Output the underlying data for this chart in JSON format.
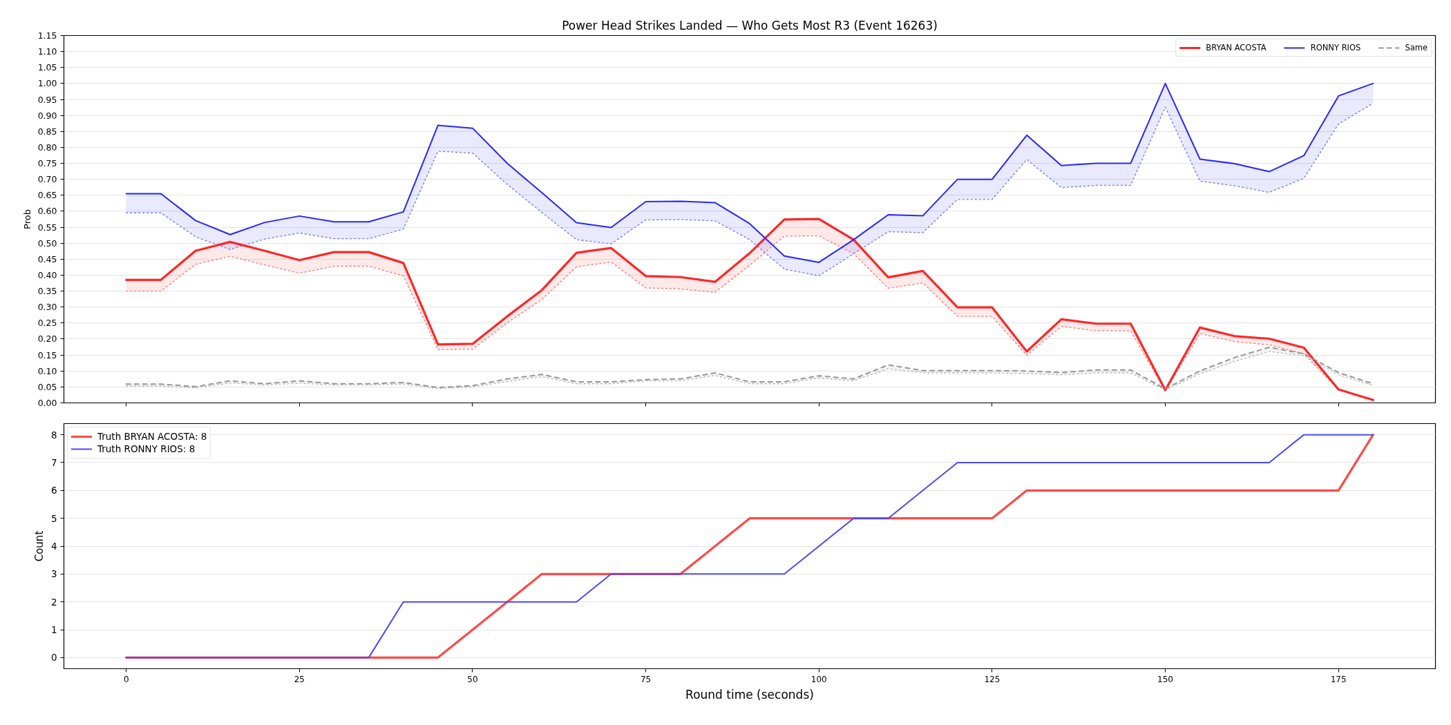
{
  "chart_data": [
    {
      "type": "line",
      "title": "Power Head Strikes Landed — Who Gets Most R3 (Event 16263)",
      "ylabel": "Prob",
      "x": [
        0,
        5,
        10,
        15,
        20,
        25,
        30,
        35,
        40,
        45,
        50,
        55,
        60,
        65,
        70,
        75,
        80,
        85,
        90,
        95,
        100,
        105,
        110,
        115,
        120,
        125,
        130,
        135,
        140,
        145,
        150,
        155,
        160,
        165,
        170,
        175,
        180
      ],
      "xlim": [
        -9,
        189
      ],
      "xticks": [
        0,
        25,
        50,
        75,
        100,
        125,
        150,
        175
      ],
      "ylim": [
        0,
        1.15
      ],
      "yticks": [
        {
          "value": 0,
          "label": "0.00"
        },
        {
          "value": 0.05,
          "label": "0.05"
        },
        {
          "value": 0.1,
          "label": "0.10"
        },
        {
          "value": 0.15,
          "label": "0.15"
        },
        {
          "value": 0.2,
          "label": "0.20"
        },
        {
          "value": 0.25,
          "label": "0.25"
        },
        {
          "value": 0.3,
          "label": "0.30"
        },
        {
          "value": 0.35,
          "label": "0.35"
        },
        {
          "value": 0.4,
          "label": "0.40"
        },
        {
          "value": 0.45,
          "label": "0.45"
        },
        {
          "value": 0.5,
          "label": "0.50"
        },
        {
          "value": 0.55,
          "label": "0.55"
        },
        {
          "value": 0.6,
          "label": "0.60"
        },
        {
          "value": 0.65,
          "label": "0.65"
        },
        {
          "value": 0.7,
          "label": "0.70"
        },
        {
          "value": 0.75,
          "label": "0.75"
        },
        {
          "value": 0.8,
          "label": "0.80"
        },
        {
          "value": 0.85,
          "label": "0.85"
        },
        {
          "value": 0.9,
          "label": "0.90"
        },
        {
          "value": 0.95,
          "label": "0.95"
        },
        {
          "value": 1,
          "label": "1.00"
        },
        {
          "value": 1.05,
          "label": "1.05"
        },
        {
          "value": 1.1,
          "label": "1.10"
        },
        {
          "value": 1.15,
          "label": "1.15"
        }
      ],
      "tick_labels": "y",
      "grid": "y",
      "legend": "top right",
      "series": [
        {
          "color": "#ff7070",
          "line_style": "dotted",
          "values": [
            0.35,
            0.35,
            0.434,
            0.459,
            0.432,
            0.406,
            0.428,
            0.428,
            0.398,
            0.167,
            0.168,
            0.251,
            0.324,
            0.426,
            0.441,
            0.36,
            0.357,
            0.346,
            0.431,
            0.522,
            0.523,
            0.467,
            0.359,
            0.376,
            0.271,
            0.271,
            0.149,
            0.24,
            0.226,
            0.226,
            0.037,
            0.217,
            0.192,
            0.182,
            0.154,
            0.041,
            0.007
          ]
        },
        {
          "color": "#7070ff",
          "line_style": "dotted",
          "values": [
            0.595,
            0.595,
            0.52,
            0.48,
            0.513,
            0.532,
            0.514,
            0.514,
            0.544,
            0.788,
            0.782,
            0.684,
            0.596,
            0.511,
            0.498,
            0.573,
            0.574,
            0.57,
            0.511,
            0.419,
            0.398,
            0.467,
            0.536,
            0.533,
            0.637,
            0.637,
            0.762,
            0.674,
            0.681,
            0.681,
            0.926,
            0.694,
            0.68,
            0.659,
            0.703,
            0.873,
            0.938
          ]
        },
        {
          "color": "#b4b4b4",
          "line_style": "dotted",
          "values": [
            0.053,
            0.053,
            0.047,
            0.062,
            0.056,
            0.062,
            0.056,
            0.056,
            0.059,
            0.045,
            0.05,
            0.067,
            0.082,
            0.06,
            0.06,
            0.069,
            0.069,
            0.086,
            0.06,
            0.06,
            0.078,
            0.069,
            0.107,
            0.094,
            0.094,
            0.094,
            0.092,
            0.088,
            0.094,
            0.094,
            0.04,
            0.091,
            0.13,
            0.161,
            0.148,
            0.088,
            0.054
          ]
        },
        {
          "name": "BRYAN ACOSTA",
          "color": "#ff2626",
          "line_style": "solid",
          "values": [
            0.385,
            0.385,
            0.476,
            0.504,
            0.476,
            0.447,
            0.472,
            0.472,
            0.438,
            0.183,
            0.185,
            0.271,
            0.353,
            0.47,
            0.485,
            0.397,
            0.394,
            0.379,
            0.469,
            0.574,
            0.576,
            0.511,
            0.393,
            0.413,
            0.299,
            0.299,
            0.161,
            0.262,
            0.248,
            0.248,
            0.04,
            0.236,
            0.209,
            0.201,
            0.173,
            0.042,
            0.009
          ],
          "lower": [
            0.35,
            0.35,
            0.434,
            0.459,
            0.432,
            0.406,
            0.428,
            0.428,
            0.398,
            0.167,
            0.168,
            0.251,
            0.324,
            0.426,
            0.441,
            0.36,
            0.357,
            0.346,
            0.431,
            0.522,
            0.523,
            0.467,
            0.359,
            0.376,
            0.271,
            0.271,
            0.149,
            0.24,
            0.226,
            0.226,
            0.037,
            0.217,
            0.192,
            0.182,
            0.154,
            0.041,
            0.007
          ],
          "upper": [
            0.385,
            0.385,
            0.476,
            0.504,
            0.476,
            0.447,
            0.472,
            0.472,
            0.438,
            0.183,
            0.185,
            0.271,
            0.353,
            0.47,
            0.485,
            0.397,
            0.394,
            0.379,
            0.469,
            0.574,
            0.576,
            0.511,
            0.393,
            0.413,
            0.299,
            0.299,
            0.161,
            0.262,
            0.248,
            0.248,
            0.04,
            0.236,
            0.209,
            0.201,
            0.173,
            0.042,
            0.009
          ]
        },
        {
          "name": "RONNY RIOS",
          "color": "#2626ff",
          "line_style": "solid",
          "values": [
            0.655,
            0.655,
            0.571,
            0.527,
            0.565,
            0.585,
            0.567,
            0.567,
            0.598,
            0.869,
            0.86,
            0.75,
            0.658,
            0.564,
            0.549,
            0.63,
            0.631,
            0.627,
            0.561,
            0.46,
            0.44,
            0.511,
            0.589,
            0.586,
            0.7,
            0.7,
            0.838,
            0.743,
            0.75,
            0.75,
            1.0,
            0.763,
            0.749,
            0.724,
            0.774,
            0.961,
            1.0
          ],
          "lower": [
            0.595,
            0.595,
            0.52,
            0.48,
            0.513,
            0.532,
            0.514,
            0.514,
            0.544,
            0.788,
            0.782,
            0.684,
            0.596,
            0.511,
            0.498,
            0.573,
            0.574,
            0.57,
            0.511,
            0.419,
            0.398,
            0.467,
            0.536,
            0.533,
            0.637,
            0.637,
            0.762,
            0.674,
            0.681,
            0.681,
            0.926,
            0.694,
            0.68,
            0.659,
            0.703,
            0.873,
            0.938
          ],
          "upper": [
            0.655,
            0.655,
            0.571,
            0.527,
            0.565,
            0.585,
            0.567,
            0.567,
            0.598,
            0.869,
            0.86,
            0.75,
            0.658,
            0.564,
            0.549,
            0.63,
            0.631,
            0.627,
            0.561,
            0.46,
            0.44,
            0.511,
            0.589,
            0.586,
            0.7,
            0.7,
            0.838,
            0.743,
            0.75,
            0.75,
            1.0,
            0.763,
            0.749,
            0.724,
            0.774,
            0.961,
            1.0
          ]
        },
        {
          "name": "Same",
          "color": "#969696",
          "line_style": "dashed",
          "values": [
            0.059,
            0.059,
            0.051,
            0.069,
            0.06,
            0.069,
            0.06,
            0.06,
            0.064,
            0.048,
            0.054,
            0.075,
            0.089,
            0.066,
            0.066,
            0.073,
            0.075,
            0.094,
            0.066,
            0.066,
            0.085,
            0.075,
            0.119,
            0.101,
            0.101,
            0.101,
            0.1,
            0.095,
            0.103,
            0.103,
            0.044,
            0.1,
            0.142,
            0.174,
            0.154,
            0.095,
            0.06
          ],
          "lower": [
            0.053,
            0.053,
            0.047,
            0.062,
            0.056,
            0.062,
            0.056,
            0.056,
            0.059,
            0.045,
            0.05,
            0.067,
            0.082,
            0.06,
            0.06,
            0.069,
            0.069,
            0.086,
            0.06,
            0.06,
            0.078,
            0.069,
            0.107,
            0.094,
            0.094,
            0.094,
            0.092,
            0.088,
            0.094,
            0.094,
            0.04,
            0.091,
            0.13,
            0.161,
            0.148,
            0.088,
            0.054
          ],
          "upper": [
            0.059,
            0.059,
            0.051,
            0.069,
            0.06,
            0.069,
            0.06,
            0.06,
            0.064,
            0.048,
            0.054,
            0.075,
            0.089,
            0.066,
            0.066,
            0.073,
            0.075,
            0.094,
            0.066,
            0.066,
            0.085,
            0.075,
            0.119,
            0.101,
            0.101,
            0.101,
            0.1,
            0.095,
            0.103,
            0.103,
            0.044,
            0.1,
            0.142,
            0.174,
            0.154,
            0.095,
            0.06
          ]
        }
      ]
    },
    {
      "type": "line",
      "xlabel": "Round time (seconds)",
      "ylabel": "Count",
      "x": [
        0,
        5,
        10,
        15,
        20,
        25,
        30,
        35,
        40,
        45,
        50,
        55,
        60,
        65,
        70,
        75,
        80,
        85,
        90,
        95,
        100,
        105,
        110,
        115,
        120,
        125,
        130,
        135,
        140,
        145,
        150,
        155,
        160,
        165,
        170,
        175,
        180
      ],
      "xlim": [
        -9,
        189
      ],
      "xticks": [
        0,
        25,
        50,
        75,
        100,
        125,
        150,
        175
      ],
      "ylim": [
        -0.4,
        8.4
      ],
      "yticks": [
        0,
        1,
        2,
        3,
        4,
        5,
        6,
        7,
        8
      ],
      "grid": "y",
      "legend": "top left",
      "series": [
        {
          "name": "Truth BRYAN ACOSTA: 8",
          "color": "#ff4848",
          "line_style": "solid",
          "values": [
            0,
            0,
            0,
            0,
            0,
            0,
            0,
            0,
            0,
            0,
            1,
            2,
            3,
            3,
            3,
            3,
            3,
            4,
            5,
            5,
            5,
            5,
            5,
            5,
            5,
            5,
            6,
            6,
            6,
            6,
            6,
            6,
            6,
            6,
            6,
            6,
            8
          ]
        },
        {
          "name": "Truth RONNY RIOS: 8",
          "color": "#4848ff",
          "line_style": "solid",
          "values": [
            0,
            0,
            0,
            0,
            0,
            0,
            0,
            0,
            2,
            2,
            2,
            2,
            2,
            2,
            3,
            3,
            3,
            3,
            3,
            3,
            4,
            5,
            5,
            6,
            7,
            7,
            7,
            7,
            7,
            7,
            7,
            7,
            7,
            7,
            8,
            8,
            8
          ]
        }
      ]
    }
  ]
}
